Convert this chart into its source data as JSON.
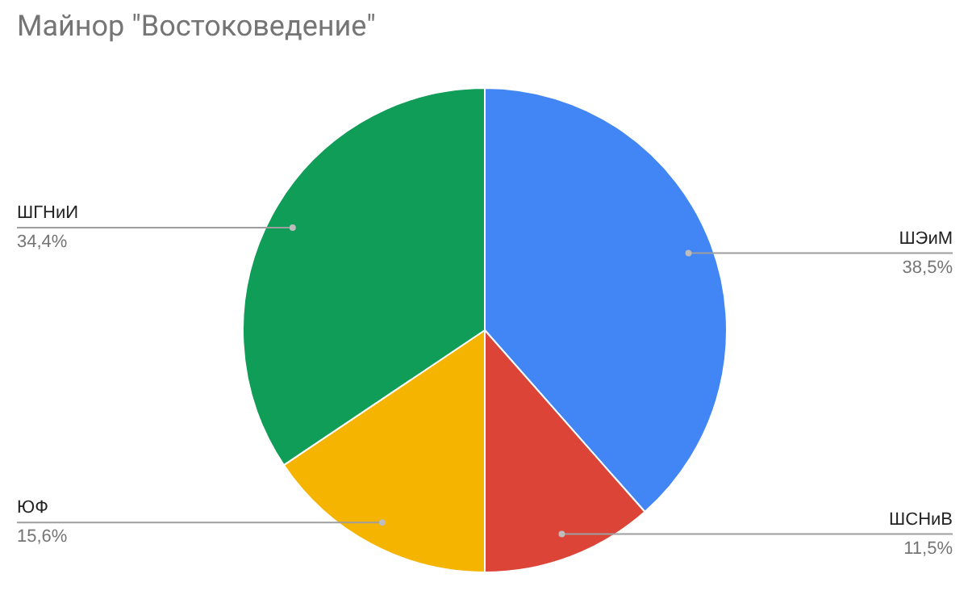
{
  "chart_data": {
    "type": "pie",
    "title": "Майнор \"Востоковедение\"",
    "categories": [
      "ШЭиМ",
      "ШСНиВ",
      "ЮФ",
      "ШГНиИ"
    ],
    "values": [
      38.5,
      11.5,
      15.6,
      34.4
    ],
    "value_labels": [
      "38,5%",
      "11,5%",
      "15,6%",
      "34,4%"
    ],
    "colors": [
      "#4285f4",
      "#db4437",
      "#f4b400",
      "#0f9d58"
    ]
  }
}
